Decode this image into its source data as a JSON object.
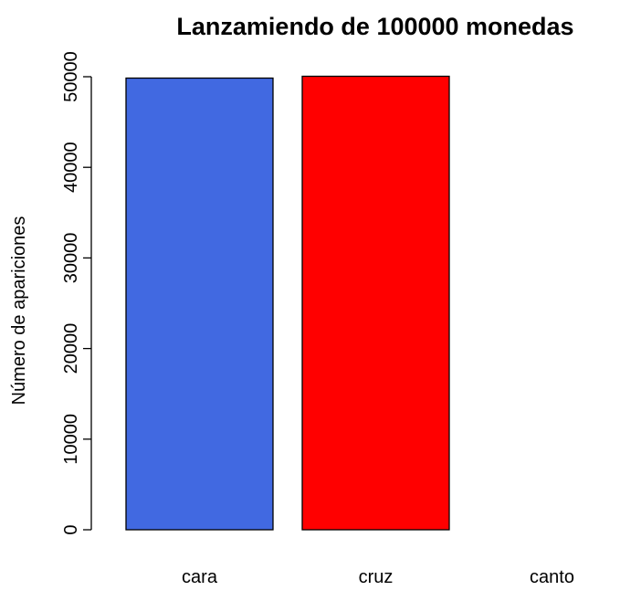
{
  "chart_data": {
    "type": "bar",
    "title": "Lanzamiendo de 100000 monedas",
    "xlabel": "",
    "ylabel": "Número de apariciones",
    "categories": [
      "cara",
      "cruz",
      "canto"
    ],
    "values": [
      49850,
      50050,
      0
    ],
    "colors": [
      "#4169E1",
      "#FF0000",
      "#FFFFFF"
    ],
    "ylim": [
      0,
      50000
    ],
    "yticks": [
      0,
      10000,
      20000,
      30000,
      40000,
      50000
    ],
    "grid": false
  }
}
